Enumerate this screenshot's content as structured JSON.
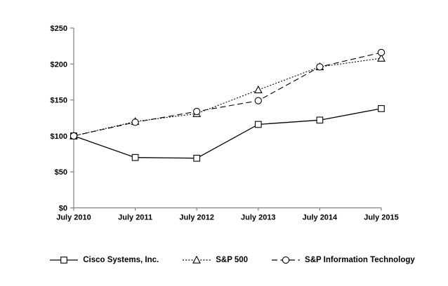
{
  "chart_data": {
    "type": "line",
    "title": "",
    "xlabel": "",
    "ylabel": "",
    "x_categories": [
      "July 2010",
      "July 2011",
      "July 2012",
      "July 2013",
      "July 2014",
      "July 2015"
    ],
    "y_tick_labels": [
      "$0",
      "$50",
      "$100",
      "$150",
      "$200",
      "$250"
    ],
    "y_tick_step": 50,
    "ylim": [
      0,
      250
    ],
    "grid": false,
    "legend_position": "bottom",
    "series": [
      {
        "name": "Cisco Systems, Inc.",
        "marker": "square",
        "line_style": "solid",
        "values": [
          100,
          70,
          69,
          116,
          122,
          138
        ]
      },
      {
        "name": "S&P 500",
        "marker": "triangle",
        "line_style": "dotted",
        "values": [
          100,
          120,
          131,
          164,
          196,
          208
        ]
      },
      {
        "name": "S&P Information Technology",
        "marker": "circle",
        "line_style": "dashed",
        "values": [
          100,
          119,
          134,
          149,
          196,
          216
        ]
      }
    ],
    "colors": {
      "axis": "#808080",
      "series": "#000000",
      "marker_fill": "#ffffff",
      "text": "#000000",
      "background": "#ffffff"
    }
  }
}
